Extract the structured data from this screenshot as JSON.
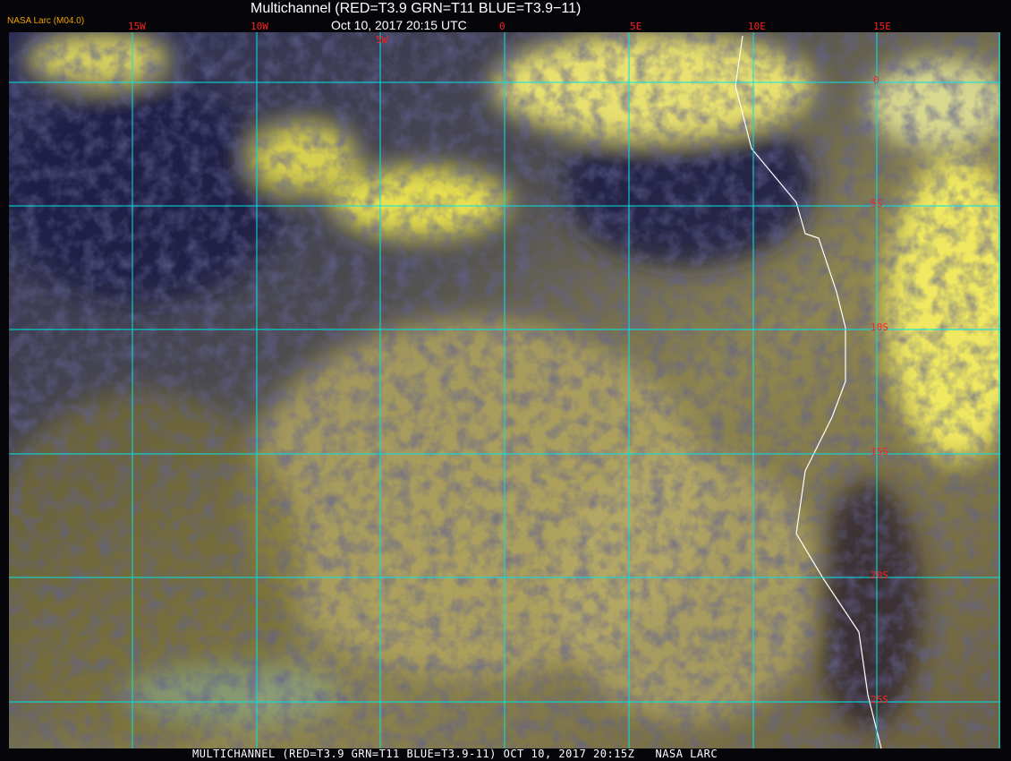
{
  "header": {
    "title": "Multichannel (RED=T3.9 GRN=T11 BLUE=T3.9−11)",
    "timestamp": "Oct 10, 2017 20:15 UTC",
    "credit": "NASA Larc (M04.0)"
  },
  "footer": {
    "caption": "MULTICHANNEL (RED=T3.9 GRN=T11 BLUE=T3.9-11) OCT 10, 2017 20:15Z   NASA LARC"
  },
  "grid": {
    "longitude_labels": [
      "15W",
      "10W",
      "5W",
      "0",
      "5E",
      "10E",
      "15E"
    ],
    "latitude_labels": [
      "0",
      "5S",
      "10S",
      "15S",
      "20S",
      "25S"
    ],
    "grid_color": "#00e5e5",
    "label_color": "#ff2020"
  },
  "colors": {
    "cloud_yellow": "#e8e050",
    "ocean_dark": "#1c1d45",
    "stratocumulus": "#a09448",
    "coastline": "#ffffff"
  }
}
